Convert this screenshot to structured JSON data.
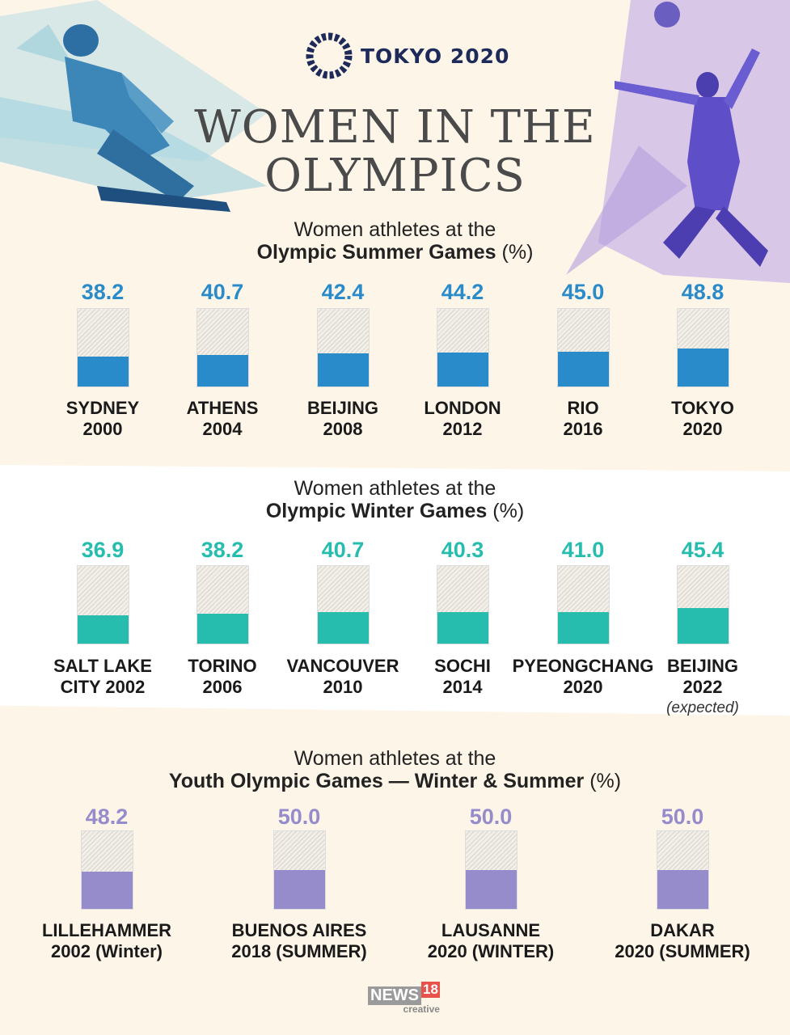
{
  "header": {
    "logo_text": "TOKYO 2020",
    "title_line1": "WOMEN IN THE",
    "title_line2": "OLYMPICS"
  },
  "colors": {
    "summer": "#2a8bca",
    "winter": "#26bcae",
    "youth": "#968ccb"
  },
  "chart_data": [
    {
      "type": "bar",
      "subtitle_line1": "Women athletes at the",
      "subtitle_bold": "Olympic Summer Games",
      "unit": "(%)",
      "ylim": [
        0,
        100
      ],
      "categories": [
        [
          "SYDNEY",
          "2000"
        ],
        [
          "ATHENS",
          "2004"
        ],
        [
          "BEIJING",
          "2008"
        ],
        [
          "LONDON",
          "2012"
        ],
        [
          "RIO",
          "2016"
        ],
        [
          "TOKYO",
          "2020"
        ]
      ],
      "values": [
        38.2,
        40.7,
        42.4,
        44.2,
        45.0,
        48.8
      ],
      "labels": [
        "38.2",
        "40.7",
        "42.4",
        "44.2",
        "45.0",
        "48.8"
      ]
    },
    {
      "type": "bar",
      "subtitle_line1": "Women athletes at the",
      "subtitle_bold": "Olympic Winter Games",
      "unit": "(%)",
      "ylim": [
        0,
        100
      ],
      "categories": [
        [
          "SALT LAKE",
          "CITY 2002"
        ],
        [
          "TORINO",
          "2006"
        ],
        [
          "VANCOUVER",
          "2010"
        ],
        [
          "SOCHI",
          "2014"
        ],
        [
          "PYEONGCHANG",
          "2020"
        ],
        [
          "BEIJING",
          "2022"
        ]
      ],
      "values": [
        36.9,
        38.2,
        40.7,
        40.3,
        41.0,
        45.4
      ],
      "labels": [
        "36.9",
        "38.2",
        "40.7",
        "40.3",
        "41.0",
        "45.4"
      ],
      "annotation": "(expected)"
    },
    {
      "type": "bar",
      "subtitle_line1": "Women athletes at the",
      "subtitle_bold": "Youth Olympic Games — Winter & Summer",
      "unit": "(%)",
      "ylim": [
        0,
        100
      ],
      "categories": [
        [
          "LILLEHAMMER",
          "2002 (Winter)"
        ],
        [
          "BUENOS AIRES",
          "2018 (SUMMER)"
        ],
        [
          "LAUSANNE",
          "2020 (WINTER)"
        ],
        [
          "DAKAR",
          "2020 (SUMMER)"
        ]
      ],
      "values": [
        48.2,
        50.0,
        50.0,
        50.0
      ],
      "labels": [
        "48.2",
        "50.0",
        "50.0",
        "50.0"
      ]
    }
  ],
  "footer": {
    "brand_main": "NEWS",
    "brand_num": "18",
    "brand_sub": "creative"
  }
}
